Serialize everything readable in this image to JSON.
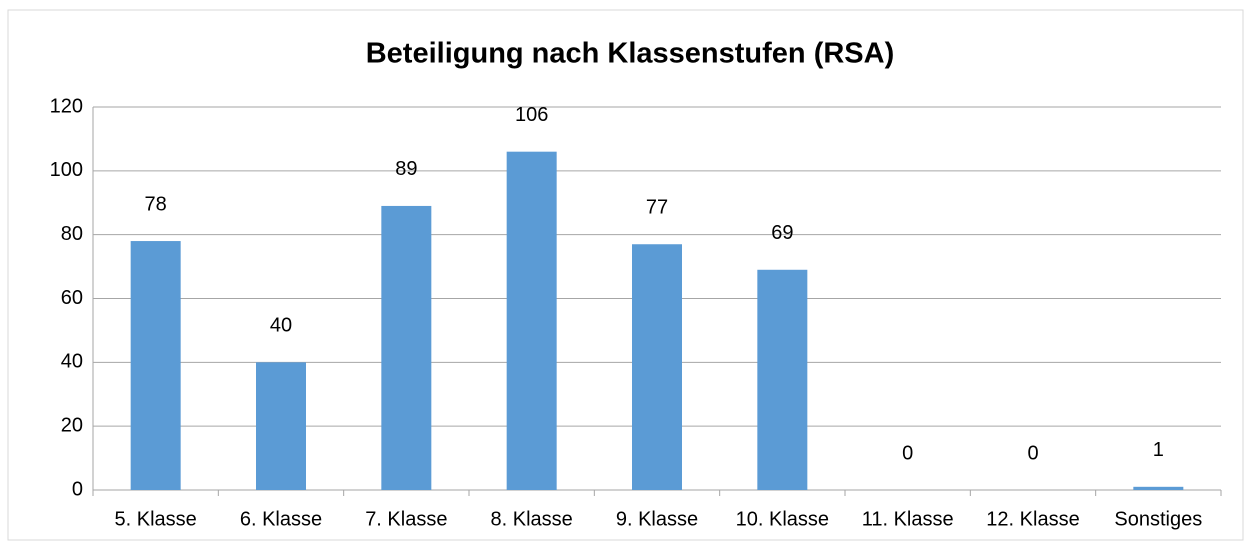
{
  "chart_data": {
    "type": "bar",
    "title": "Beteiligung nach Klassenstufen (RSA)",
    "categories": [
      "5. Klasse",
      "6. Klasse",
      "7. Klasse",
      "8. Klasse",
      "9. Klasse",
      "10. Klasse",
      "11. Klasse",
      "12. Klasse",
      "Sonstiges"
    ],
    "values": [
      78,
      40,
      89,
      106,
      77,
      69,
      0,
      0,
      1
    ],
    "color": "#5b9bd5",
    "ylim": [
      0,
      120
    ],
    "yticks": [
      0,
      20,
      40,
      60,
      80,
      100,
      120
    ],
    "grid": true
  }
}
